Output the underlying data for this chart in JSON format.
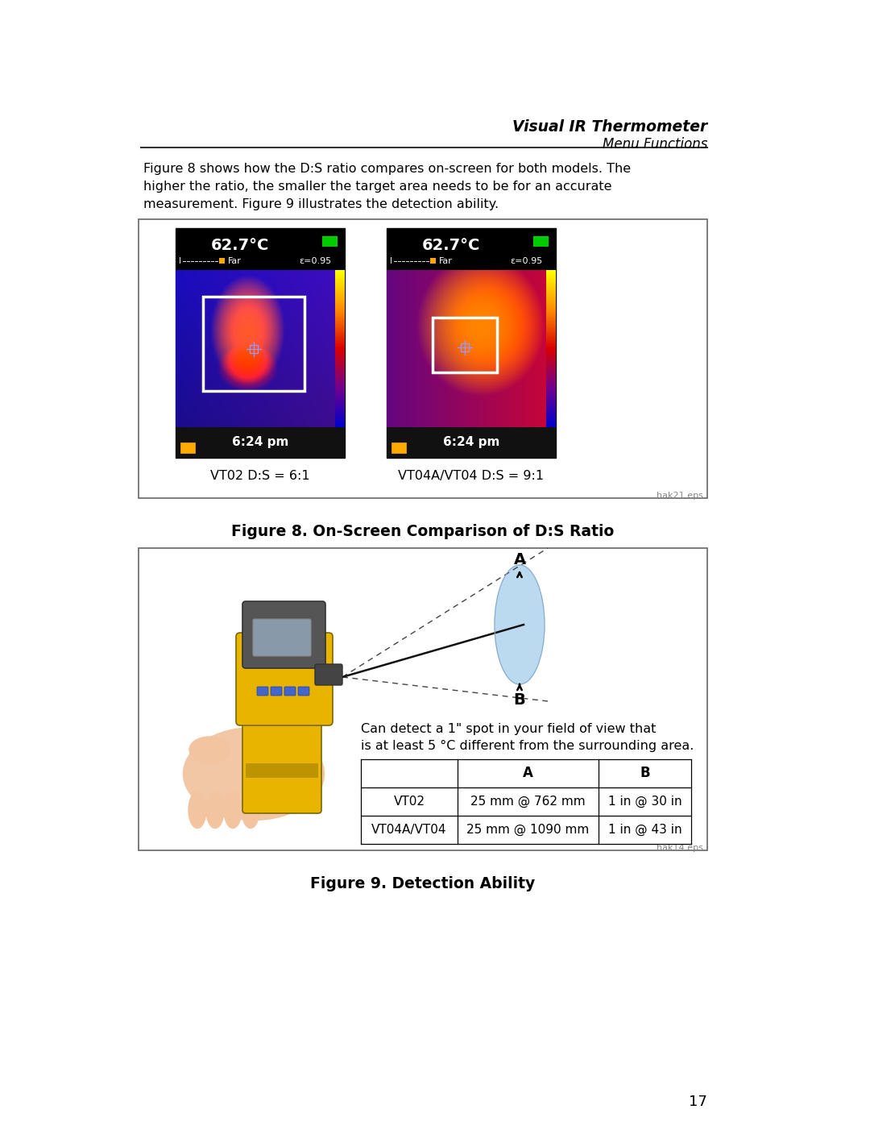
{
  "page_bg": "#ffffff",
  "header_title": "Visual IR Thermometer",
  "header_subtitle": "Menu Functions",
  "intro_text_line1": "Figure 8 shows how the D:S ratio compares on-screen for both models. The",
  "intro_text_line2": "higher the ratio, the smaller the target area needs to be for an accurate",
  "intro_text_line3": "measurement. Figure 9 illustrates the detection ability.",
  "fig8_caption": "Figure 8. On-Screen Comparison of D:S Ratio",
  "fig8_eps": "hak21.eps",
  "fig8_label1": "VT02 D:S = 6:1",
  "fig8_label2": "VT04A/VT04 D:S = 9:1",
  "fig8_time": "6:24 pm",
  "fig9_caption": "Figure 9. Detection Ability",
  "fig9_eps": "hak14.eps",
  "fig9_text1": "Can detect a 1\" spot in your field of view that",
  "fig9_text2": "is at least 5 °C different from the surrounding area.",
  "table_header_A": "A",
  "table_header_B": "B",
  "table_row1_label": "VT02",
  "table_row1_A": "25 mm @ 762 mm",
  "table_row1_B": "1 in @ 30 in",
  "table_row2_label": "VT04A/VT04",
  "table_row2_A": "25 mm @ 1090 mm",
  "table_row2_B": "1 in @ 43 in",
  "page_number": "17",
  "font_color": "#000000"
}
